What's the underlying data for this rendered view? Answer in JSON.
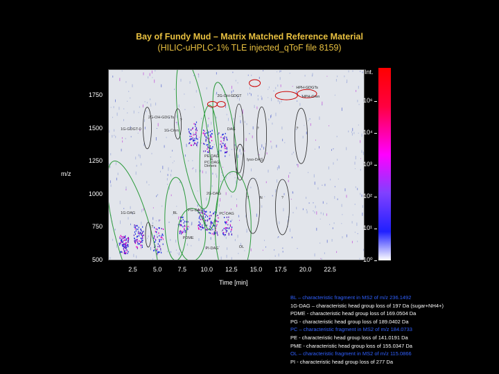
{
  "title": "Bay of Fundy Mud – Matrix Matched Reference Material",
  "subtitle": "(HILIC-uHPLC-1% TLE injected_qToF file 8159)",
  "chart_data": {
    "type": "heatmap",
    "xlabel": "Time [min]",
    "ylabel": "m/z",
    "xlim": [
      0,
      26
    ],
    "ylim": [
      500,
      1950
    ],
    "x_ticks": [
      "2.5",
      "5.0",
      "7.5",
      "10.0",
      "12.5",
      "15.0",
      "17.5",
      "20.0",
      "22.5"
    ],
    "y_ticks": [
      "500",
      "750",
      "1000",
      "1250",
      "1500",
      "1750"
    ],
    "colorbar_label": "Int.",
    "colorbar_ticks": [
      "10⁶",
      "10⁴",
      "10³",
      "10²",
      "10¹",
      "10⁰"
    ],
    "colors": {
      "high": "#ff0000",
      "mid": "#ff00ff",
      "low": "#2020ff",
      "zero": "#ffffff",
      "green_circle": "#2a9a3a",
      "red_circle": "#cc0000"
    },
    "annotations": [
      {
        "label": "HPH-GDGTs",
        "x": 19.0,
        "y": 1810,
        "color": "red"
      },
      {
        "label": "2G-OH-GDGT",
        "x": 11.0,
        "y": 1745,
        "color": "red"
      },
      {
        "label": "HPH-Cren",
        "x": 19.6,
        "y": 1740,
        "color": "red"
      },
      {
        "label": "2G-OH-GDGTs",
        "x": 4.0,
        "y": 1580,
        "color": "black"
      },
      {
        "label": "1G-GDGT-0",
        "x": 1.2,
        "y": 1495,
        "color": "black"
      },
      {
        "label": "1G-Cren",
        "x": 5.6,
        "y": 1485,
        "color": "black"
      },
      {
        "label": "DAG",
        "x": 12.0,
        "y": 1495,
        "color": "black"
      },
      {
        "label": "PE-DAG",
        "x": 9.7,
        "y": 1290,
        "color": "black"
      },
      {
        "label": "&",
        "x": 10.3,
        "y": 1265,
        "color": "black"
      },
      {
        "label": "PC-DAG",
        "x": 9.7,
        "y": 1240,
        "color": "black"
      },
      {
        "label": "Dimers",
        "x": 9.7,
        "y": 1215,
        "color": "black"
      },
      {
        "label": "lyso-DAG",
        "x": 14.0,
        "y": 1260,
        "color": "black"
      },
      {
        "label": "2G-DAG",
        "x": 9.9,
        "y": 1005,
        "color": "black"
      },
      {
        "label": "PG-DAG",
        "x": 8.0,
        "y": 880,
        "color": "black"
      },
      {
        "label": "BL",
        "x": 6.5,
        "y": 860,
        "color": "black"
      },
      {
        "label": "1G-DAG",
        "x": 1.2,
        "y": 855,
        "color": "black"
      },
      {
        "label": "PC-DAG",
        "x": 11.2,
        "y": 850,
        "color": "black"
      },
      {
        "label": "PDME",
        "x": 7.5,
        "y": 670,
        "color": "black"
      },
      {
        "label": "PI-DAG",
        "x": 9.8,
        "y": 590,
        "color": "black"
      },
      {
        "label": "OL",
        "x": 13.2,
        "y": 600,
        "color": "black"
      },
      {
        "label": "?",
        "x": 7.2,
        "y": 1560,
        "color": "black"
      },
      {
        "label": "?",
        "x": 15.0,
        "y": 1500,
        "color": "black"
      },
      {
        "label": "?",
        "x": 19.0,
        "y": 1500,
        "color": "black"
      },
      {
        "label": "?",
        "x": 14.0,
        "y": 975,
        "color": "black"
      },
      {
        "label": "?",
        "x": 17.5,
        "y": 975,
        "color": "black"
      },
      {
        "label": "?",
        "x": 4.3,
        "y": 755,
        "color": "black"
      },
      {
        "label": "N",
        "x": 15.3,
        "y": 975,
        "color": "black"
      }
    ]
  },
  "legend": [
    {
      "text": "BL – characteristic fragment in MS2 of m/z 236.1492",
      "color": "#3060ff"
    },
    {
      "text": "1G-DAG – characteristic head group loss of 197 Da (sugar+NH4+)",
      "color": "#ffffff"
    },
    {
      "text": "PDME - characteristic head group loss of 169.0504 Da",
      "color": "#ffffff"
    },
    {
      "text": "PG - characteristic head group loss of 189.0402 Da",
      "color": "#ffffff"
    },
    {
      "text": "PC – characteristic fragment in MS2 of m/z 184.0733",
      "color": "#3060ff"
    },
    {
      "text": "PE - characteristic head group loss of 141.0191 Da",
      "color": "#ffffff"
    },
    {
      "text": "PME - characteristic head group loss of 155.0347 Da",
      "color": "#ffffff"
    },
    {
      "text": "OL – characteristic fragment in MS2 of m/z 115.0866",
      "color": "#3060ff"
    },
    {
      "text": "PI - characteristic head group loss of 277 Da",
      "color": "#ffffff"
    }
  ]
}
